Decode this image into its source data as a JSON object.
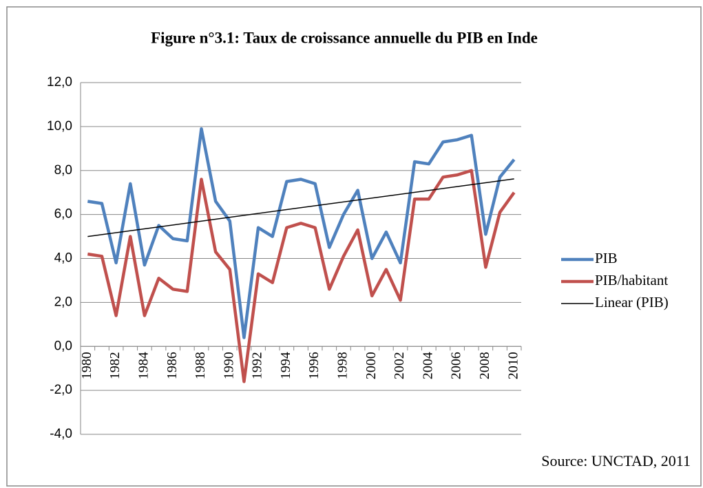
{
  "chart_data": {
    "type": "line",
    "title": "Figure n°3.1: Taux de croissance annuelle du PIB en Inde",
    "source": "Source: UNCTAD, 2011",
    "categories": [
      "1980",
      null,
      "1982",
      null,
      "1984",
      null,
      "1986",
      null,
      "1988",
      null,
      "1990",
      null,
      "1992",
      null,
      "1994",
      null,
      "1996",
      null,
      "1998",
      null,
      "2000",
      null,
      "2002",
      null,
      "2004",
      null,
      "2006",
      null,
      "2008",
      null,
      "2010"
    ],
    "series": [
      {
        "name": "PIB",
        "color": "#4f81bd",
        "values": [
          6.6,
          6.5,
          3.8,
          7.4,
          3.7,
          5.5,
          4.9,
          4.8,
          9.9,
          6.6,
          5.7,
          0.4,
          5.4,
          5.0,
          7.5,
          7.6,
          7.4,
          4.5,
          6.0,
          7.1,
          4.0,
          5.2,
          3.8,
          8.4,
          8.3,
          9.3,
          9.4,
          9.6,
          5.1,
          7.7,
          8.5
        ]
      },
      {
        "name": "PIB/habitant",
        "color": "#c0504d",
        "values": [
          4.2,
          4.1,
          1.4,
          5.0,
          1.4,
          3.1,
          2.6,
          2.5,
          7.6,
          4.3,
          3.5,
          -1.6,
          3.3,
          2.9,
          5.4,
          5.6,
          5.4,
          2.6,
          4.1,
          5.3,
          2.3,
          3.5,
          2.1,
          6.7,
          6.7,
          7.7,
          7.8,
          8.0,
          3.6,
          6.1,
          7.0
        ]
      },
      {
        "name": "Linear (PIB)",
        "color": "#000000",
        "fit": "linear"
      }
    ],
    "ylim": [
      -4,
      12
    ],
    "yticks": [
      {
        "value": -4,
        "label": "-4,0"
      },
      {
        "value": -2,
        "label": "-2,0"
      },
      {
        "value": 0,
        "label": "0,0"
      },
      {
        "value": 2,
        "label": "2,0"
      },
      {
        "value": 4,
        "label": "4,0"
      },
      {
        "value": 6,
        "label": "6,0"
      },
      {
        "value": 8,
        "label": "8,0"
      },
      {
        "value": 10,
        "label": "10,0"
      },
      {
        "value": 12,
        "label": "12,0"
      }
    ],
    "grid": true,
    "legend": "right"
  }
}
